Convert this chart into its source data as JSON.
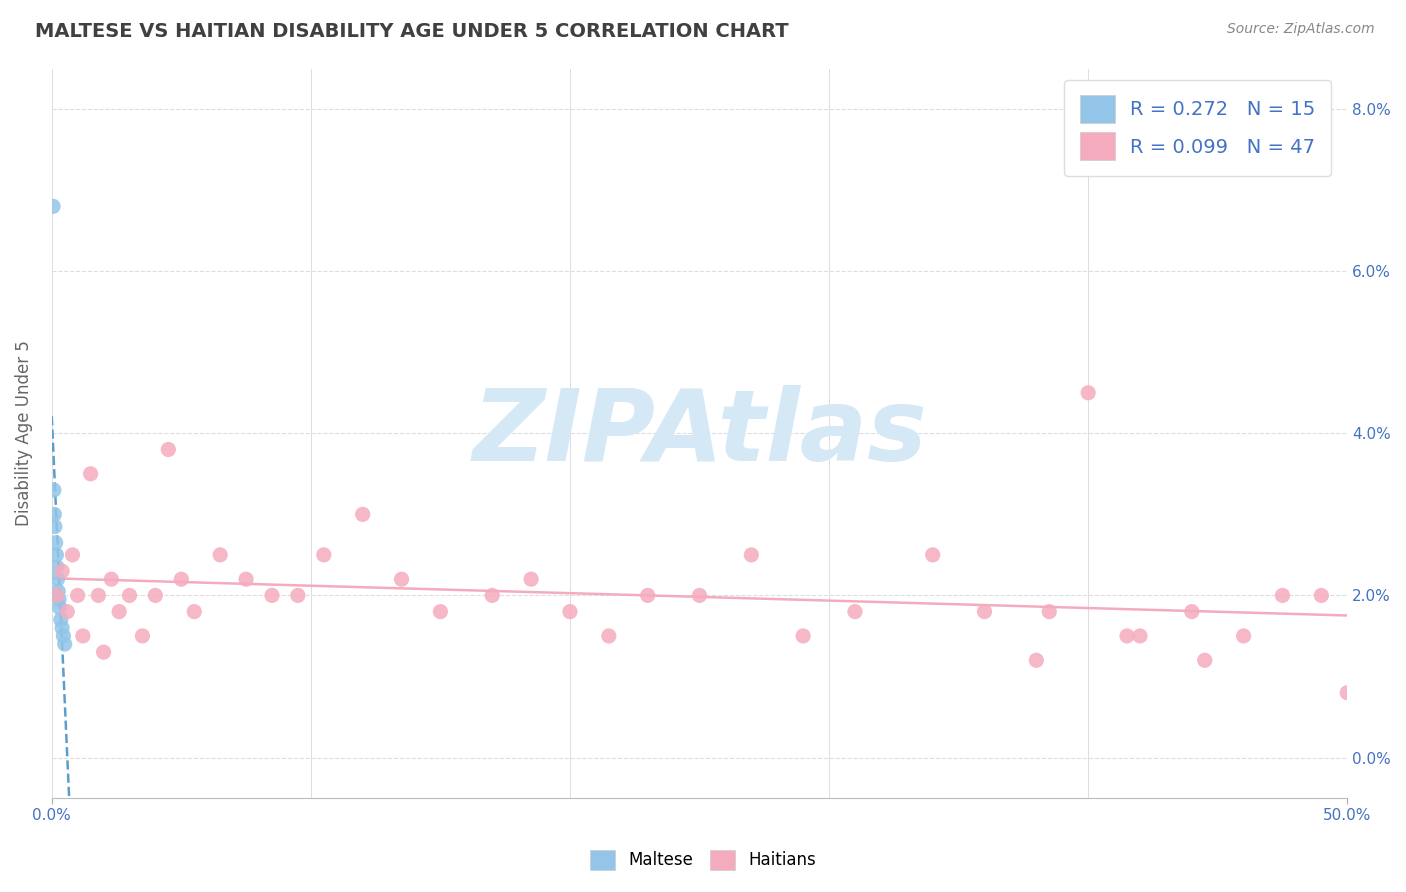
{
  "title": "MALTESE VS HAITIAN DISABILITY AGE UNDER 5 CORRELATION CHART",
  "source_text": "Source: ZipAtlas.com",
  "xlim": [
    0,
    50
  ],
  "ylim": [
    -0.5,
    8.5
  ],
  "x_ticks": [
    0,
    50
  ],
  "x_tick_labels": [
    "0.0%",
    "50.0%"
  ],
  "y_ticks": [
    0,
    2,
    4,
    6,
    8
  ],
  "y_tick_labels": [
    "0.0%",
    "2.0%",
    "4.0%",
    "6.0%",
    "8.0%"
  ],
  "maltese_x": [
    0.05,
    0.08,
    0.1,
    0.12,
    0.15,
    0.18,
    0.2,
    0.22,
    0.25,
    0.28,
    0.3,
    0.35,
    0.4,
    0.45,
    0.5
  ],
  "maltese_y": [
    6.8,
    3.3,
    3.0,
    2.85,
    2.65,
    2.5,
    2.35,
    2.2,
    2.05,
    1.95,
    1.85,
    1.7,
    1.6,
    1.5,
    1.4
  ],
  "haitian_x": [
    0.2,
    0.4,
    0.6,
    0.8,
    1.0,
    1.2,
    1.5,
    1.8,
    2.0,
    2.3,
    2.6,
    3.0,
    3.5,
    4.0,
    4.5,
    5.0,
    5.5,
    6.5,
    7.5,
    8.5,
    9.5,
    10.5,
    12.0,
    13.5,
    15.0,
    17.0,
    18.5,
    20.0,
    21.5,
    23.0,
    25.0,
    27.0,
    29.0,
    31.0,
    34.0,
    36.0,
    38.0,
    40.0,
    42.0,
    44.0,
    46.0,
    47.5,
    49.0,
    50.0,
    38.5,
    41.5,
    44.5
  ],
  "haitian_y": [
    2.0,
    2.3,
    1.8,
    2.5,
    2.0,
    1.5,
    3.5,
    2.0,
    1.3,
    2.2,
    1.8,
    2.0,
    1.5,
    2.0,
    3.8,
    2.2,
    1.8,
    2.5,
    2.2,
    2.0,
    2.0,
    2.5,
    3.0,
    2.2,
    1.8,
    2.0,
    2.2,
    1.8,
    1.5,
    2.0,
    2.0,
    2.5,
    1.5,
    1.8,
    2.5,
    1.8,
    1.2,
    4.5,
    1.5,
    1.8,
    1.5,
    2.0,
    2.0,
    0.8,
    1.8,
    1.5,
    1.2
  ],
  "maltese_scatter_color": "#92C5E8",
  "haitian_scatter_color": "#F5ABBE",
  "maltese_line_color": "#5B9EC9",
  "haitian_line_color": "#F5ABBE",
  "background_color": "#FFFFFF",
  "grid_color": "#E0E0E0",
  "title_color": "#404040",
  "axis_color": "#4472C4",
  "source_color": "#888888",
  "ylabel": "Disability Age Under 5",
  "ylabel_color": "#666666",
  "watermark_text": "ZIPAtlas",
  "watermark_color": "#D5E8F5",
  "R_maltese": 0.272,
  "N_maltese": 15,
  "R_haitian": 0.099,
  "N_haitian": 47,
  "bottom_legend_labels": [
    "Maltese",
    "Haitians"
  ]
}
